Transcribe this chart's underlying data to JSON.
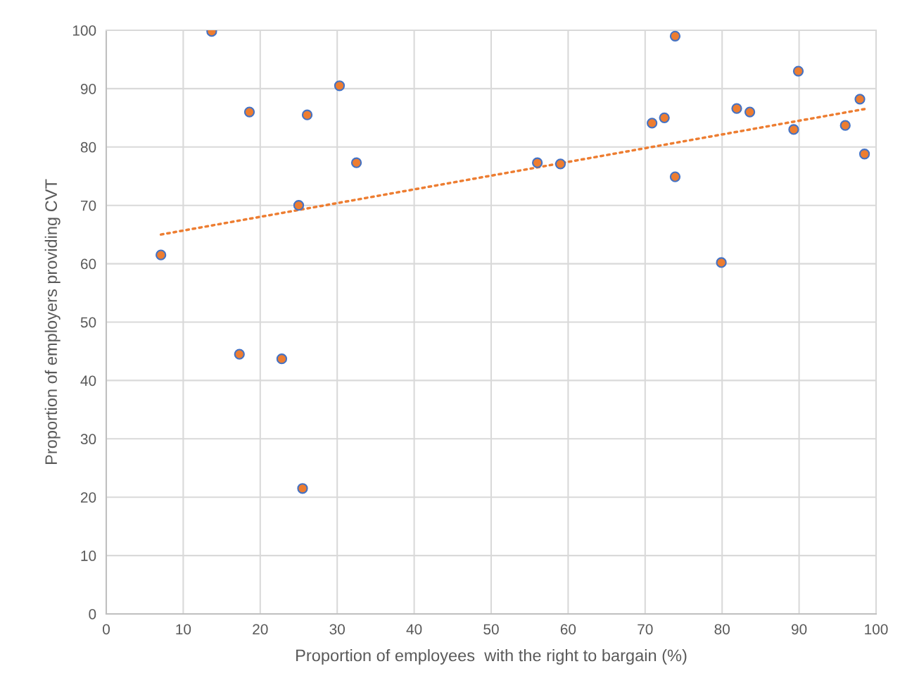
{
  "chart_data": {
    "type": "scatter",
    "xlabel": "Proportion of employees  with the right to bargain (%)",
    "ylabel": "Proportion of employers providing CVT",
    "xlim": [
      0,
      100
    ],
    "ylim": [
      0,
      100
    ],
    "xticks": [
      0,
      10,
      20,
      30,
      40,
      50,
      60,
      70,
      80,
      90,
      100
    ],
    "yticks": [
      0,
      10,
      20,
      30,
      40,
      50,
      60,
      70,
      80,
      90,
      100
    ],
    "grid": true,
    "series": [
      {
        "color": "#ed7d31",
        "marker": "circle",
        "x": [
          7.1,
          13.7,
          18.6,
          17.3,
          22.8,
          25.5,
          25.0,
          26.1,
          30.3,
          32.5,
          56.0,
          59.0,
          70.9,
          72.5,
          73.9,
          73.9,
          79.9,
          81.9,
          83.6,
          89.3,
          89.9,
          96.0,
          97.9,
          98.5
        ],
        "values": [
          61.5,
          99.8,
          86.0,
          44.5,
          43.7,
          21.5,
          70.0,
          85.5,
          90.5,
          77.3,
          77.3,
          77.1,
          84.1,
          85.0,
          99.0,
          74.9,
          60.2,
          86.6,
          86.0,
          83.0,
          93.0,
          83.7,
          88.2,
          78.8
        ]
      },
      {
        "type": "line",
        "color": "#ed7d31",
        "line_style": "dotted",
        "marker": "none",
        "x": [
          7.1,
          98.5
        ],
        "values": [
          65.0,
          86.5
        ]
      }
    ]
  }
}
